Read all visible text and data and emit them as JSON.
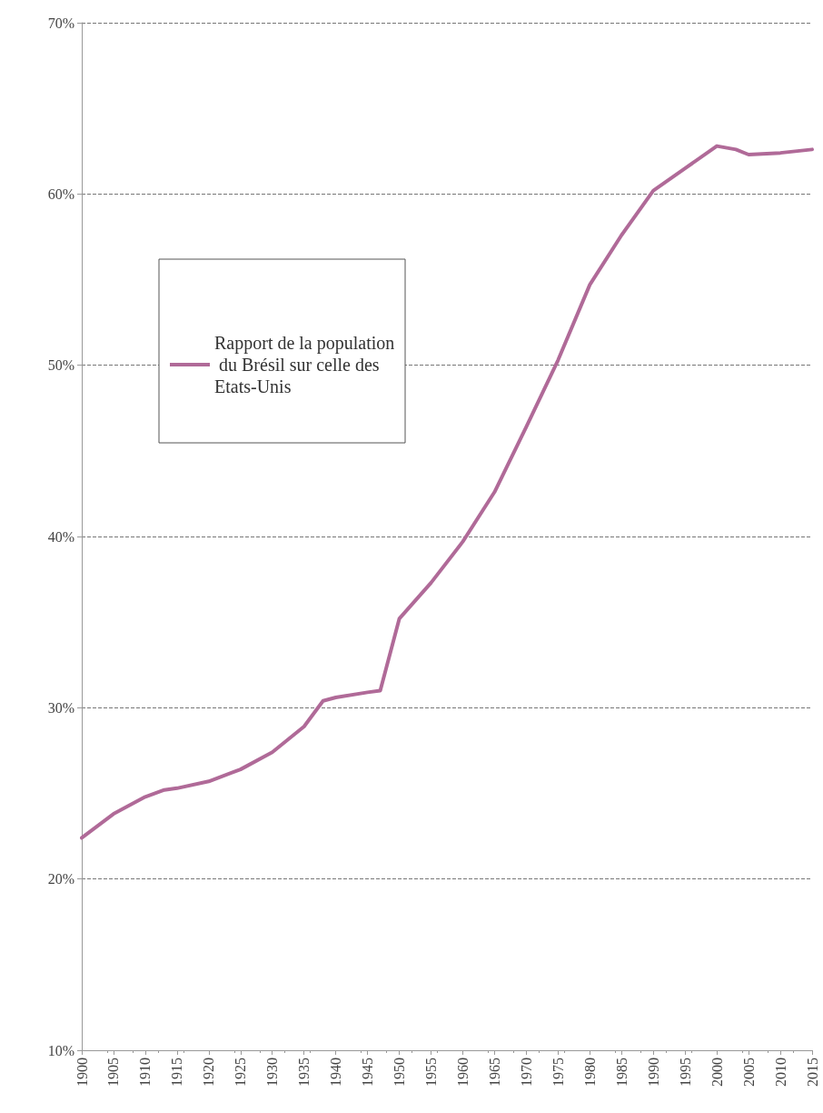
{
  "chart_data": {
    "type": "line",
    "x": [
      1900,
      1905,
      1910,
      1913,
      1915,
      1920,
      1925,
      1930,
      1935,
      1938,
      1940,
      1945,
      1947,
      1950,
      1955,
      1960,
      1965,
      1970,
      1975,
      1980,
      1985,
      1990,
      1995,
      2000,
      2003,
      2005,
      2010,
      2015
    ],
    "series": [
      {
        "name": "Rapport de la population du Brésil sur celle des Etats-Unis",
        "color": "#b06a98",
        "values": [
          22.4,
          23.8,
          24.8,
          25.2,
          25.3,
          25.7,
          26.4,
          27.4,
          28.9,
          30.4,
          30.6,
          30.9,
          31.0,
          35.2,
          37.3,
          39.7,
          42.6,
          46.4,
          50.3,
          54.7,
          57.6,
          60.2,
          61.5,
          62.8,
          62.6,
          62.3,
          62.4,
          62.6
        ]
      }
    ],
    "xlim": [
      1900,
      2015
    ],
    "xticks": [
      1900,
      1905,
      1910,
      1915,
      1920,
      1925,
      1930,
      1935,
      1940,
      1945,
      1950,
      1955,
      1960,
      1965,
      1970,
      1975,
      1980,
      1985,
      1990,
      1995,
      2000,
      2005,
      2010,
      2015
    ],
    "ylim": [
      10,
      70
    ],
    "yticks": [
      {
        "value": 10,
        "label": "10%"
      },
      {
        "value": 20,
        "label": "20%"
      },
      {
        "value": 30,
        "label": "30%"
      },
      {
        "value": 40,
        "label": "40%"
      },
      {
        "value": 50,
        "label": "50%"
      },
      {
        "value": 60,
        "label": "60%"
      },
      {
        "value": 70,
        "label": "70%"
      }
    ],
    "grid": "y",
    "legend": "left",
    "marker": "none",
    "line_style": "solid"
  }
}
